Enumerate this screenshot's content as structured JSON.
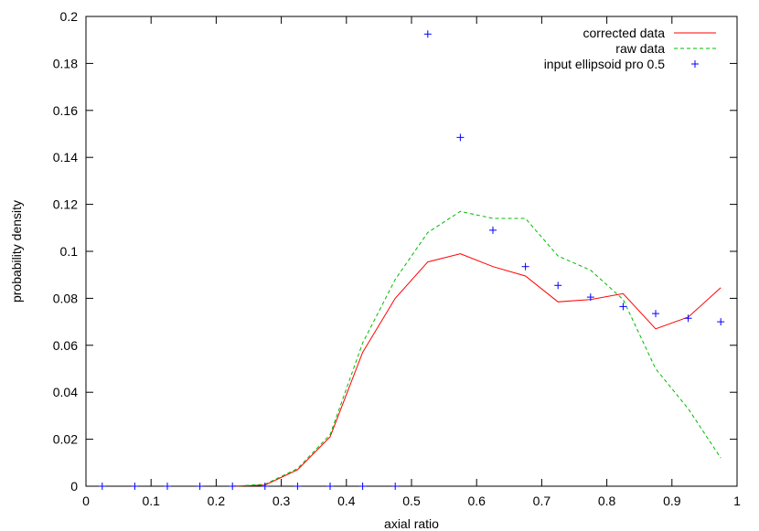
{
  "chart_data": {
    "type": "line",
    "xlabel": "axial ratio",
    "ylabel": "probability density",
    "xlim": [
      0,
      1
    ],
    "ylim": [
      0,
      0.2
    ],
    "xticks": [
      "0",
      "0.1",
      "0.2",
      "0.3",
      "0.4",
      "0.5",
      "0.6",
      "0.7",
      "0.8",
      "0.9",
      "1"
    ],
    "yticks": [
      "0",
      "0.02",
      "0.04",
      "0.06",
      "0.08",
      "0.1",
      "0.12",
      "0.14",
      "0.16",
      "0.18",
      "0.2"
    ],
    "legend_position": "top-right",
    "grid": false,
    "series": [
      {
        "name": "corrected data",
        "style": "line",
        "color": "#ff0000",
        "x": [
          0.225,
          0.275,
          0.325,
          0.375,
          0.425,
          0.475,
          0.525,
          0.575,
          0.625,
          0.675,
          0.725,
          0.775,
          0.825,
          0.875,
          0.925,
          0.975
        ],
        "y": [
          0.0,
          0.0005,
          0.007,
          0.021,
          0.057,
          0.08,
          0.0955,
          0.099,
          0.0935,
          0.0895,
          0.0785,
          0.0795,
          0.082,
          0.067,
          0.072,
          0.0845
        ]
      },
      {
        "name": "raw data",
        "style": "dashed",
        "color": "#00bb00",
        "x": [
          0.225,
          0.275,
          0.325,
          0.375,
          0.425,
          0.475,
          0.525,
          0.575,
          0.625,
          0.675,
          0.725,
          0.775,
          0.825,
          0.875,
          0.925,
          0.975
        ],
        "y": [
          0.0,
          0.0008,
          0.0075,
          0.022,
          0.061,
          0.088,
          0.108,
          0.117,
          0.114,
          0.114,
          0.098,
          0.092,
          0.0795,
          0.05,
          0.033,
          0.012
        ]
      },
      {
        "name": "input ellipsoid pro 0.5",
        "style": "points",
        "color": "#0000ff",
        "x": [
          0.025,
          0.075,
          0.125,
          0.175,
          0.225,
          0.275,
          0.325,
          0.375,
          0.425,
          0.475,
          0.525,
          0.575,
          0.625,
          0.675,
          0.725,
          0.775,
          0.825,
          0.875,
          0.925,
          0.975
        ],
        "y": [
          0,
          0,
          0,
          0,
          0,
          0,
          0,
          0,
          0,
          0,
          0.1925,
          0.1485,
          0.109,
          0.0935,
          0.0855,
          0.0805,
          0.0765,
          0.0735,
          0.0715,
          0.07
        ]
      }
    ]
  }
}
